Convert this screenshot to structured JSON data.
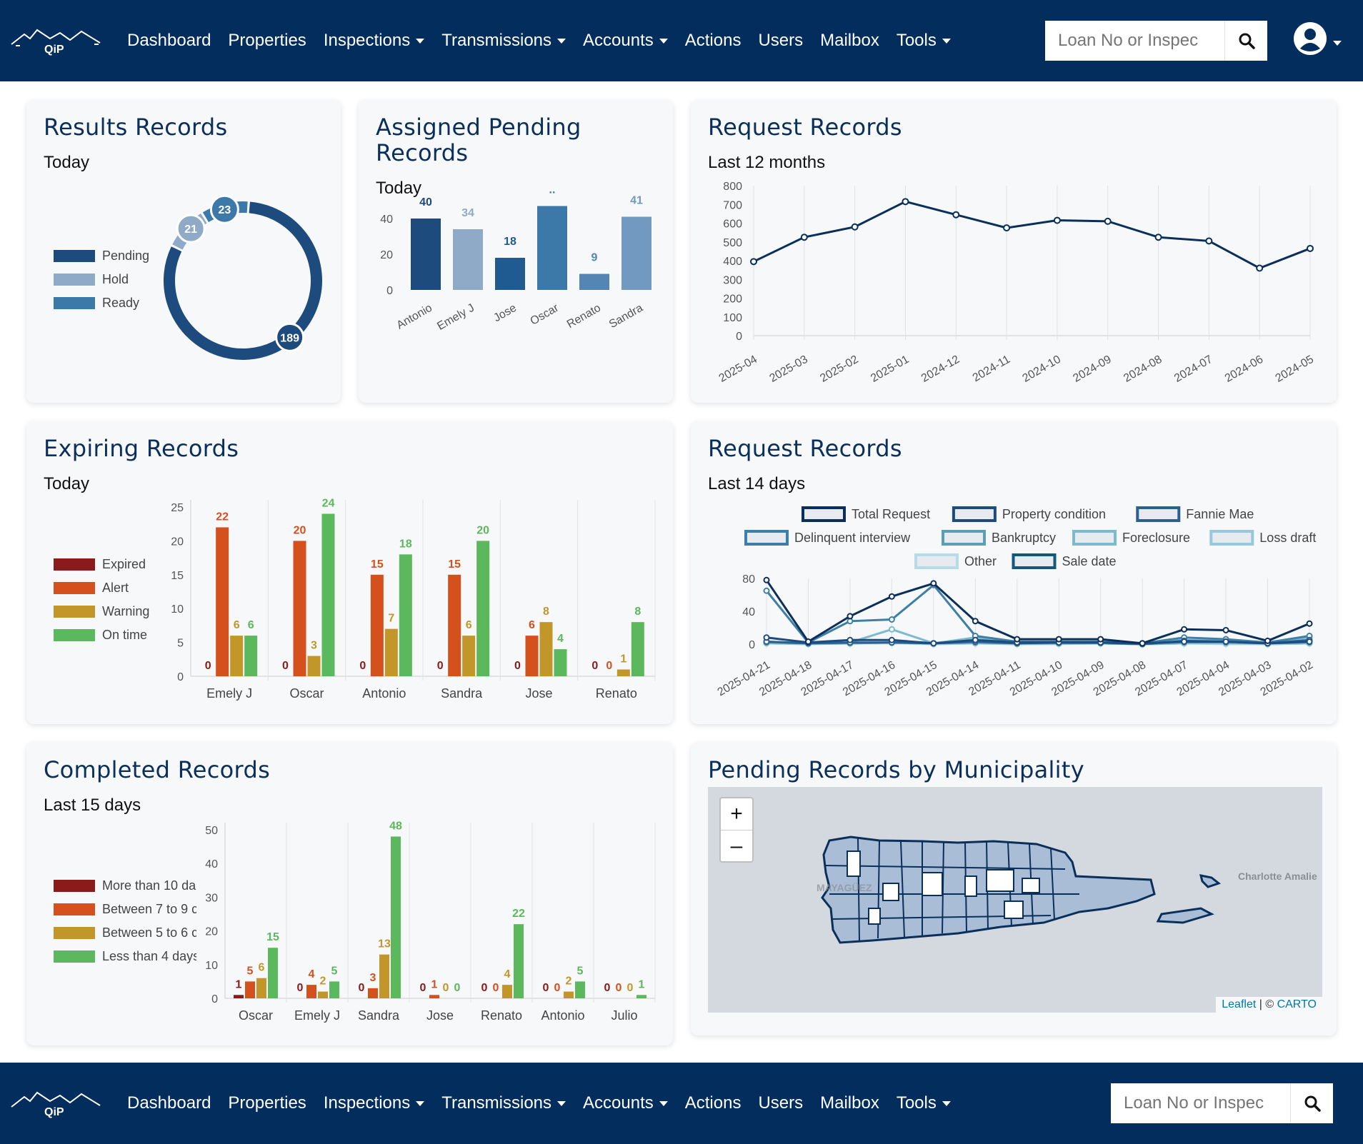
{
  "nav": {
    "items": [
      {
        "label": "Dashboard",
        "dropdown": false
      },
      {
        "label": "Properties",
        "dropdown": false
      },
      {
        "label": "Inspections",
        "dropdown": true
      },
      {
        "label": "Transmissions",
        "dropdown": true
      },
      {
        "label": "Accounts",
        "dropdown": true
      },
      {
        "label": "Actions",
        "dropdown": false
      },
      {
        "label": "Users",
        "dropdown": false
      },
      {
        "label": "Mailbox",
        "dropdown": false
      },
      {
        "label": "Tools",
        "dropdown": true
      }
    ],
    "logo_text": "QiP",
    "search_placeholder": "Loan No or Inspec",
    "icons": {
      "search": "search-icon",
      "user": "user-circle-icon",
      "caret": "caret-down-icon"
    },
    "colors": {
      "navbar": "#022d5c"
    }
  },
  "cards": {
    "results": {
      "title": "Results Records",
      "subtitle": "Today",
      "chart_data": {
        "type": "pie",
        "labels": [
          "Pending",
          "Hold",
          "Ready"
        ],
        "values": [
          189,
          21,
          23
        ],
        "colors": [
          "#1d4b7e",
          "#8eaac7",
          "#3d79a8"
        ],
        "legend": "left"
      }
    },
    "assigned": {
      "title": "Assigned Pending Records",
      "subtitle": "Today",
      "chart_data": {
        "type": "bar",
        "categories": [
          "Antonio",
          "Emely J",
          "Jose",
          "Oscar",
          "Renato",
          "Sandra"
        ],
        "values": [
          40,
          34,
          18,
          47,
          9,
          41
        ],
        "labels": [
          "40",
          "34",
          "18",
          "..",
          "9",
          "41"
        ],
        "colors": [
          "#1d4b7e",
          "#8eaac7",
          "#1f5a90",
          "#3d79a8",
          "#5585b3",
          "#7299bf"
        ],
        "ylim": [
          0,
          50
        ],
        "yticks": [
          0,
          20,
          40
        ],
        "grid": false
      }
    },
    "request12": {
      "title": "Request Records",
      "subtitle": "Last 12 months",
      "chart_data": {
        "type": "line",
        "x": [
          "2025-04",
          "2025-03",
          "2025-02",
          "2025-01",
          "2024-12",
          "2024-11",
          "2024-10",
          "2024-09",
          "2024-08",
          "2024-07",
          "2024-06",
          "2024-05"
        ],
        "values": [
          395,
          525,
          580,
          715,
          645,
          575,
          615,
          610,
          525,
          505,
          360,
          465
        ],
        "ylim": [
          0,
          800
        ],
        "yticks": [
          0,
          100,
          200,
          300,
          400,
          500,
          600,
          700,
          800
        ],
        "color": "#0b2f5b",
        "grid": "vertical"
      }
    },
    "expiring": {
      "title": "Expiring Records",
      "subtitle": "Today",
      "chart_data": {
        "type": "bar",
        "categories": [
          "Emely J",
          "Oscar",
          "Antonio",
          "Sandra",
          "Jose",
          "Renato"
        ],
        "series": [
          {
            "name": "Expired",
            "color": "#8b1a1a",
            "values": [
              0,
              0,
              0,
              0,
              0,
              0
            ]
          },
          {
            "name": "Alert",
            "color": "#d4511e",
            "values": [
              22,
              20,
              15,
              15,
              6,
              0
            ]
          },
          {
            "name": "Warning",
            "color": "#c3962a",
            "values": [
              6,
              3,
              7,
              6,
              8,
              1
            ]
          },
          {
            "name": "On time",
            "color": "#5cb85c",
            "values": [
              6,
              24,
              18,
              20,
              4,
              8
            ]
          }
        ],
        "ylim": [
          0,
          25
        ],
        "yticks": [
          0,
          5,
          10,
          15,
          20,
          25
        ],
        "legend": "left"
      }
    },
    "request14": {
      "title": "Request Records",
      "subtitle": "Last 14 days",
      "chart_data": {
        "type": "line",
        "x": [
          "2025-04-21",
          "2025-04-18",
          "2025-04-17",
          "2025-04-16",
          "2025-04-15",
          "2025-04-14",
          "2025-04-11",
          "2025-04-10",
          "2025-04-09",
          "2025-04-08",
          "2025-04-07",
          "2025-04-04",
          "2025-04-03",
          "2025-04-02"
        ],
        "series": [
          {
            "name": "Total Request",
            "color": "#0b2f5b",
            "values": [
              78,
              3,
              34,
              58,
              74,
              28,
              6,
              6,
              6,
              1,
              18,
              17,
              4,
              25
            ]
          },
          {
            "name": "Property condition",
            "color": "#1d4b7e",
            "values": [
              8,
              2,
              5,
              5,
              1,
              5,
              2,
              2,
              2,
              1,
              3,
              3,
              1,
              3
            ]
          },
          {
            "name": "Fannie Mae",
            "color": "#2a5f8f",
            "values": [
              3,
              1,
              2,
              2,
              1,
              3,
              1,
              2,
              2,
              0,
              4,
              3,
              1,
              5
            ]
          },
          {
            "name": "Delinquent interview",
            "color": "#3d7fa6",
            "values": [
              65,
              2,
              28,
              30,
              72,
              10,
              3,
              3,
              3,
              1,
              8,
              6,
              2,
              10
            ]
          },
          {
            "name": "Bankruptcy",
            "color": "#5a9fb5",
            "values": [
              2,
              1,
              1,
              2,
              1,
              2,
              1,
              1,
              1,
              0,
              2,
              2,
              1,
              2
            ]
          },
          {
            "name": "Foreclosure",
            "color": "#7bbbd0",
            "values": [
              3,
              1,
              2,
              18,
              1,
              8,
              2,
              2,
              2,
              1,
              5,
              4,
              2,
              8
            ]
          },
          {
            "name": "Loss draft",
            "color": "#98c8dc",
            "values": [
              1,
              0,
              1,
              2,
              0,
              1,
              0,
              1,
              1,
              0,
              1,
              1,
              0,
              1
            ]
          },
          {
            "name": "Other",
            "color": "#b8dbe8",
            "values": [
              1,
              0,
              1,
              1,
              0,
              1,
              0,
              0,
              1,
              0,
              1,
              0,
              0,
              1
            ]
          },
          {
            "name": "Sale date",
            "color": "#15577a",
            "values": [
              2,
              1,
              1,
              2,
              1,
              2,
              1,
              1,
              1,
              0,
              1,
              1,
              0,
              1
            ]
          }
        ],
        "ylim": [
          0,
          80
        ],
        "yticks": [
          0,
          40,
          80
        ],
        "legend": "top"
      }
    },
    "completed": {
      "title": "Completed Records",
      "subtitle": "Last 15 days",
      "chart_data": {
        "type": "bar",
        "categories": [
          "Oscar",
          "Emely J",
          "Sandra",
          "Jose",
          "Renato",
          "Antonio",
          "Julio"
        ],
        "series": [
          {
            "name": "More than 10 da",
            "color": "#8b1a1a",
            "values": [
              1,
              0,
              0,
              0,
              0,
              0,
              0
            ]
          },
          {
            "name": "Between 7 to 9 c",
            "color": "#d4511e",
            "values": [
              5,
              4,
              3,
              1,
              0,
              0,
              0
            ]
          },
          {
            "name": "Between 5 to 6 c",
            "color": "#c3962a",
            "values": [
              6,
              2,
              13,
              0,
              4,
              2,
              0
            ]
          },
          {
            "name": "Less than 4 days",
            "color": "#5cb85c",
            "values": [
              15,
              5,
              48,
              0,
              22,
              5,
              1
            ]
          }
        ],
        "ylim": [
          0,
          50
        ],
        "yticks": [
          0,
          10,
          20,
          30,
          40,
          50
        ],
        "legend": "left"
      }
    },
    "map": {
      "title": "Pending Records by Municipality",
      "zoom_in": "+",
      "zoom_out": "–",
      "attribution_leaflet": "Leaflet",
      "attribution_sep": " | © ",
      "attribution_carto": "CARTO",
      "labels": [
        "MAYAGÜEZ",
        "Charlotte Amalie"
      ]
    }
  }
}
